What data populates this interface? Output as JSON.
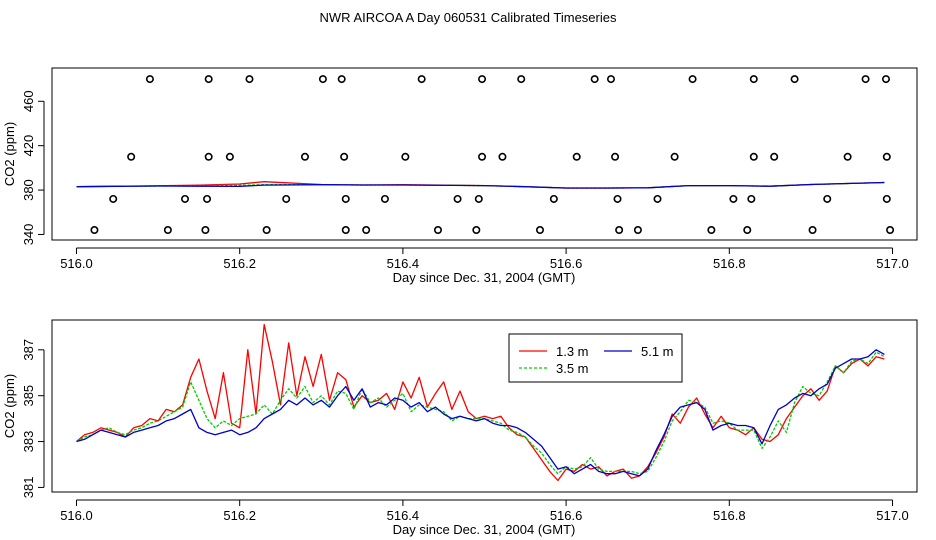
{
  "title": "NWR AIRCOA A  Day 060531  Calibrated Timeseries",
  "chart_data": [
    {
      "type": "scatter",
      "name": "calibration-panel",
      "xlabel": "Day since Dec. 31, 2004 (GMT)",
      "ylabel": "CO2 (ppm)",
      "xlim": [
        515.97,
        517.03
      ],
      "ylim": [
        335,
        490
      ],
      "xticks": [
        "516.0",
        "516.2",
        "516.4",
        "516.6",
        "516.8",
        "517.0"
      ],
      "xtick_values": [
        516.0,
        516.2,
        516.4,
        516.6,
        516.8,
        517.0
      ],
      "yticks": [
        "340",
        "380",
        "420",
        "460"
      ],
      "ytick_values": [
        340,
        380,
        420,
        460
      ],
      "calibration_points": {
        "x": [
          516.09,
          516.162,
          516.212,
          516.302,
          516.325,
          516.423,
          516.497,
          516.545,
          516.635,
          516.655,
          516.755,
          516.83,
          516.88,
          516.967,
          516.992,
          516.067,
          516.162,
          516.188,
          516.28,
          516.328,
          516.403,
          516.497,
          516.522,
          516.613,
          516.66,
          516.733,
          516.83,
          516.855,
          516.945,
          516.993,
          516.045,
          516.133,
          516.16,
          516.257,
          516.33,
          516.378,
          516.467,
          516.493,
          516.585,
          516.663,
          516.712,
          516.805,
          516.827,
          516.92,
          516.993,
          516.022,
          516.112,
          516.158,
          516.233,
          516.33,
          516.355,
          516.443,
          516.49,
          516.568,
          516.665,
          516.688,
          516.778,
          516.822,
          516.902,
          516.997
        ],
        "y": [
          480,
          480,
          480,
          480,
          480,
          480,
          480,
          480,
          480,
          480,
          480,
          480,
          480,
          480,
          480,
          410,
          410,
          410,
          410,
          410,
          410,
          410,
          410,
          410,
          410,
          410,
          410,
          410,
          410,
          410,
          372,
          372,
          372,
          372,
          372,
          372,
          372,
          372,
          372,
          372,
          372,
          372,
          372,
          372,
          372,
          344,
          344,
          344,
          344,
          344,
          344,
          344,
          344,
          344,
          344,
          344,
          344,
          344,
          344,
          344
        ]
      },
      "series": [
        {
          "name": "1.3 m",
          "color": "#ff0000",
          "x": [
            516.0,
            516.05,
            516.1,
            516.15,
            516.2,
            516.23,
            516.3,
            516.35,
            516.4,
            516.5,
            516.55,
            516.6,
            516.65,
            516.7,
            516.75,
            516.8,
            516.85,
            516.9,
            516.95,
            516.99
          ],
          "values": [
            383.0,
            383.5,
            383.8,
            384.5,
            385.5,
            387.5,
            385.0,
            384.6,
            384.8,
            384.0,
            383.0,
            381.8,
            381.8,
            382.0,
            384.0,
            384.0,
            383.5,
            385.0,
            386.0,
            386.8
          ]
        },
        {
          "name": "3.5 m",
          "color": "#00cc00",
          "x": [
            516.0,
            516.05,
            516.1,
            516.15,
            516.2,
            516.23,
            516.3,
            516.35,
            516.4,
            516.5,
            516.55,
            516.6,
            516.65,
            516.7,
            516.75,
            516.8,
            516.85,
            516.9,
            516.95,
            516.99
          ],
          "values": [
            383.0,
            383.4,
            383.7,
            384.0,
            384.3,
            384.8,
            384.8,
            384.6,
            384.6,
            384.0,
            383.0,
            381.9,
            381.9,
            382.0,
            384.0,
            384.0,
            383.5,
            385.0,
            386.0,
            386.8
          ]
        },
        {
          "name": "5.1 m",
          "color": "#0000cc",
          "x": [
            516.0,
            516.05,
            516.1,
            516.15,
            516.2,
            516.23,
            516.3,
            516.35,
            516.4,
            516.5,
            516.55,
            516.6,
            516.65,
            516.7,
            516.75,
            516.8,
            516.85,
            516.9,
            516.95,
            516.99
          ],
          "values": [
            383.0,
            383.4,
            383.7,
            383.5,
            383.3,
            384.5,
            384.8,
            384.6,
            384.6,
            384.0,
            383.0,
            381.9,
            381.9,
            382.0,
            384.0,
            384.0,
            383.5,
            385.0,
            386.0,
            386.8
          ]
        }
      ]
    },
    {
      "type": "line",
      "name": "timeseries-panel",
      "xlabel": "Day since Dec. 31, 2004 (GMT)",
      "ylabel": "CO2 (ppm)",
      "xlim": [
        515.97,
        517.03
      ],
      "ylim": [
        380.8,
        388.3
      ],
      "xticks": [
        "516.0",
        "516.2",
        "516.4",
        "516.6",
        "516.8",
        "517.0"
      ],
      "xtick_values": [
        516.0,
        516.2,
        516.4,
        516.6,
        516.8,
        517.0
      ],
      "yticks": [
        "381",
        "383",
        "385",
        "387"
      ],
      "ytick_values": [
        381,
        383,
        385,
        387
      ],
      "legend": [
        "1.3 m",
        "3.5 m",
        "5.1 m"
      ],
      "legend_position": "top-right",
      "series": [
        {
          "name": "1.3 m",
          "color": "#ff0000",
          "x": [
            516.0,
            516.01,
            516.02,
            516.03,
            516.04,
            516.05,
            516.06,
            516.07,
            516.08,
            516.09,
            516.1,
            516.11,
            516.12,
            516.13,
            516.14,
            516.15,
            516.16,
            516.17,
            516.18,
            516.19,
            516.2,
            516.21,
            516.22,
            516.23,
            516.24,
            516.25,
            516.26,
            516.27,
            516.28,
            516.29,
            516.3,
            516.31,
            516.32,
            516.33,
            516.34,
            516.35,
            516.36,
            516.37,
            516.38,
            516.39,
            516.4,
            516.41,
            516.42,
            516.43,
            516.44,
            516.45,
            516.46,
            516.47,
            516.48,
            516.49,
            516.5,
            516.51,
            516.52,
            516.53,
            516.54,
            516.55,
            516.56,
            516.57,
            516.58,
            516.59,
            516.6,
            516.61,
            516.62,
            516.63,
            516.64,
            516.65,
            516.66,
            516.67,
            516.68,
            516.69,
            516.7,
            516.71,
            516.72,
            516.73,
            516.74,
            516.75,
            516.76,
            516.77,
            516.78,
            516.79,
            516.8,
            516.81,
            516.82,
            516.83,
            516.84,
            516.85,
            516.86,
            516.87,
            516.88,
            516.89,
            516.9,
            516.91,
            516.92,
            516.93,
            516.94,
            516.95,
            516.96,
            516.97,
            516.98,
            516.99
          ],
          "values": [
            383.0,
            383.3,
            383.4,
            383.6,
            383.5,
            383.4,
            383.2,
            383.6,
            383.7,
            384.0,
            383.9,
            384.4,
            384.3,
            384.6,
            385.8,
            386.6,
            385.2,
            384.0,
            386.0,
            383.8,
            383.6,
            387.0,
            384.2,
            388.1,
            386.5,
            384.6,
            387.3,
            385.0,
            386.7,
            385.4,
            386.8,
            384.8,
            386.0,
            385.7,
            384.5,
            385.0,
            384.7,
            384.8,
            385.1,
            384.4,
            385.6,
            384.9,
            385.8,
            384.5,
            385.1,
            385.6,
            384.4,
            385.2,
            384.3,
            384.0,
            384.1,
            384.0,
            384.1,
            383.6,
            383.3,
            383.2,
            382.7,
            382.2,
            381.7,
            381.3,
            381.8,
            381.7,
            382.0,
            381.8,
            381.9,
            381.5,
            381.7,
            381.8,
            381.4,
            381.5,
            381.9,
            382.5,
            383.2,
            384.2,
            383.8,
            384.5,
            384.9,
            384.2,
            383.6,
            384.1,
            383.6,
            383.5,
            383.3,
            383.6,
            383.1,
            383.0,
            383.3,
            384.0,
            384.5,
            385.0,
            385.3,
            384.8,
            385.2,
            386.3,
            386.0,
            386.4,
            386.6,
            386.3,
            386.7,
            386.6
          ]
        },
        {
          "name": "3.5 m",
          "color": "#00cc00",
          "x": [
            516.0,
            516.01,
            516.02,
            516.03,
            516.04,
            516.05,
            516.06,
            516.07,
            516.08,
            516.09,
            516.1,
            516.11,
            516.12,
            516.13,
            516.14,
            516.15,
            516.16,
            516.17,
            516.18,
            516.19,
            516.2,
            516.21,
            516.22,
            516.23,
            516.24,
            516.25,
            516.26,
            516.27,
            516.28,
            516.29,
            516.3,
            516.31,
            516.32,
            516.33,
            516.34,
            516.35,
            516.36,
            516.37,
            516.38,
            516.39,
            516.4,
            516.41,
            516.42,
            516.43,
            516.44,
            516.45,
            516.46,
            516.47,
            516.48,
            516.49,
            516.5,
            516.51,
            516.52,
            516.53,
            516.54,
            516.55,
            516.56,
            516.57,
            516.58,
            516.59,
            516.6,
            516.61,
            516.62,
            516.63,
            516.64,
            516.65,
            516.66,
            516.67,
            516.68,
            516.69,
            516.7,
            516.71,
            516.72,
            516.73,
            516.74,
            516.75,
            516.76,
            516.77,
            516.78,
            516.79,
            516.8,
            516.81,
            516.82,
            516.83,
            516.84,
            516.85,
            516.86,
            516.87,
            516.88,
            516.89,
            516.9,
            516.91,
            516.92,
            516.93,
            516.94,
            516.95,
            516.96,
            516.97,
            516.98,
            516.99
          ],
          "values": [
            383.0,
            383.2,
            383.3,
            383.5,
            383.6,
            383.4,
            383.3,
            383.5,
            383.6,
            383.8,
            383.9,
            384.1,
            384.3,
            384.5,
            385.6,
            384.8,
            384.0,
            383.6,
            383.9,
            383.7,
            384.0,
            384.1,
            384.2,
            384.6,
            384.2,
            384.8,
            385.3,
            384.9,
            385.4,
            384.7,
            385.0,
            384.6,
            385.2,
            385.1,
            384.4,
            385.3,
            384.7,
            384.9,
            384.5,
            384.8,
            385.1,
            384.3,
            384.6,
            384.5,
            384.4,
            384.3,
            383.9,
            384.1,
            384.0,
            384.0,
            384.0,
            383.9,
            383.8,
            383.5,
            383.4,
            383.2,
            382.8,
            382.5,
            382.0,
            381.6,
            381.9,
            381.8,
            381.9,
            382.3,
            381.8,
            381.7,
            381.7,
            381.7,
            381.7,
            381.6,
            381.7,
            382.3,
            383.0,
            383.9,
            384.3,
            384.8,
            384.7,
            384.5,
            383.8,
            383.9,
            383.8,
            383.5,
            383.5,
            383.5,
            382.7,
            383.2,
            383.9,
            383.4,
            384.7,
            385.4,
            385.1,
            385.0,
            385.6,
            386.3,
            386.0,
            386.5,
            386.6,
            386.4,
            386.9,
            386.7
          ]
        },
        {
          "name": "5.1 m",
          "color": "#0000cc",
          "x": [
            516.0,
            516.01,
            516.02,
            516.03,
            516.04,
            516.05,
            516.06,
            516.07,
            516.08,
            516.09,
            516.1,
            516.11,
            516.12,
            516.13,
            516.14,
            516.15,
            516.16,
            516.17,
            516.18,
            516.19,
            516.2,
            516.21,
            516.22,
            516.23,
            516.24,
            516.25,
            516.26,
            516.27,
            516.28,
            516.29,
            516.3,
            516.31,
            516.32,
            516.33,
            516.34,
            516.35,
            516.36,
            516.37,
            516.38,
            516.39,
            516.4,
            516.41,
            516.42,
            516.43,
            516.44,
            516.45,
            516.46,
            516.47,
            516.48,
            516.49,
            516.5,
            516.51,
            516.52,
            516.53,
            516.54,
            516.55,
            516.56,
            516.57,
            516.58,
            516.59,
            516.6,
            516.61,
            516.62,
            516.63,
            516.64,
            516.65,
            516.66,
            516.67,
            516.68,
            516.69,
            516.7,
            516.71,
            516.72,
            516.73,
            516.74,
            516.75,
            516.76,
            516.77,
            516.78,
            516.79,
            516.8,
            516.81,
            516.82,
            516.83,
            516.84,
            516.85,
            516.86,
            516.87,
            516.88,
            516.89,
            516.9,
            516.91,
            516.92,
            516.93,
            516.94,
            516.95,
            516.96,
            516.97,
            516.98,
            516.99
          ],
          "values": [
            383.0,
            383.1,
            383.3,
            383.5,
            383.4,
            383.3,
            383.2,
            383.4,
            383.5,
            383.6,
            383.7,
            383.9,
            384.0,
            384.2,
            384.4,
            383.6,
            383.4,
            383.3,
            383.4,
            383.5,
            383.3,
            383.4,
            383.6,
            384.0,
            384.2,
            384.4,
            384.8,
            384.6,
            384.9,
            384.6,
            384.8,
            384.5,
            385.0,
            385.4,
            384.8,
            385.3,
            384.5,
            384.7,
            384.6,
            384.9,
            384.8,
            384.5,
            384.7,
            384.3,
            384.5,
            384.2,
            384.0,
            384.1,
            384.0,
            383.9,
            384.0,
            383.8,
            383.7,
            383.7,
            383.6,
            383.4,
            383.1,
            382.8,
            382.3,
            381.8,
            381.9,
            381.6,
            381.8,
            382.0,
            381.7,
            381.6,
            381.6,
            381.7,
            381.6,
            381.5,
            381.8,
            382.6,
            383.3,
            384.1,
            384.5,
            384.6,
            384.7,
            384.4,
            383.5,
            383.7,
            383.8,
            383.7,
            383.7,
            383.6,
            382.9,
            383.7,
            384.4,
            384.6,
            384.9,
            385.1,
            385.0,
            385.3,
            385.5,
            386.2,
            386.4,
            386.6,
            386.6,
            386.7,
            387.0,
            386.8
          ]
        }
      ]
    }
  ]
}
